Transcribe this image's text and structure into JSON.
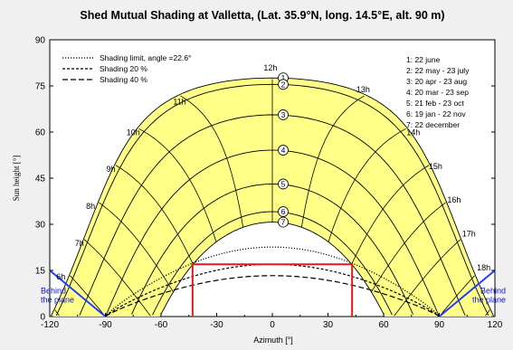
{
  "chart_data": {
    "type": "line",
    "title": "Shed Mutual Shading at  Valletta, (Lat. 35.9°N, long. 14.5°E, alt. 90 m)",
    "xlabel": "Azimuth [°]",
    "ylabel": "Sun height [°]",
    "xlim": [
      -120,
      120
    ],
    "ylim": [
      0,
      90
    ],
    "xticks": [
      -120,
      -90,
      -60,
      -30,
      0,
      30,
      60,
      90,
      120
    ],
    "yticks": [
      0,
      15,
      30,
      45,
      60,
      75,
      90
    ],
    "grid": false,
    "colors": {
      "sun_area": "#ffff88",
      "shading_box": "#e81818",
      "behind_plane": "#1f3fff"
    },
    "date_curves": [
      {
        "id": "1",
        "label": "1: 22 june",
        "max_elev": 77.6,
        "sunrise_az": -120
      },
      {
        "id": "2",
        "label": "2: 22 may - 23 july",
        "max_elev": 75.5,
        "sunrise_az": -117
      },
      {
        "id": "3",
        "label": "3: 20 apr - 23 aug",
        "max_elev": 65.6,
        "sunrise_az": -109
      },
      {
        "id": "4",
        "label": "4: 20 mar - 23 sep",
        "max_elev": 54.1,
        "sunrise_az": -90
      },
      {
        "id": "5",
        "label": "5: 21 feb - 23 oct",
        "max_elev": 43.1,
        "sunrise_az": -72
      },
      {
        "id": "6",
        "label": "6: 19 jan - 22 nov",
        "max_elev": 34.1,
        "sunrise_az": -64
      },
      {
        "id": "7",
        "label": "7: 22 december",
        "max_elev": 30.7,
        "sunrise_az": -62
      }
    ],
    "hour_labels": [
      {
        "label": "6h",
        "az": -114,
        "el": 12
      },
      {
        "label": "7h",
        "az": -104,
        "el": 23
      },
      {
        "label": "8h",
        "az": -98,
        "el": 35
      },
      {
        "label": "9h",
        "az": -87,
        "el": 47
      },
      {
        "label": "10h",
        "az": -75,
        "el": 59
      },
      {
        "label": "11h",
        "az": -50,
        "el": 69
      },
      {
        "label": "12h",
        "az": -1,
        "el": 80
      },
      {
        "label": "13h",
        "az": 49,
        "el": 73
      },
      {
        "label": "14h",
        "az": 76,
        "el": 59
      },
      {
        "label": "15h",
        "az": 88,
        "el": 48
      },
      {
        "label": "16h",
        "az": 98,
        "el": 37
      },
      {
        "label": "17h",
        "az": 106,
        "el": 26
      },
      {
        "label": "18h",
        "az": 114,
        "el": 15
      }
    ],
    "shading_curves": [
      {
        "label": "Shading limit, angle =22.6°",
        "style": "dotted",
        "peak": 22.6,
        "x0": 90
      },
      {
        "label": "Shading 20 %",
        "style": "dashed-short",
        "peak": 17.0,
        "x0": 90
      },
      {
        "label": "Shading 40 %",
        "style": "dashed-long",
        "peak": 13.3,
        "x0": 90
      }
    ],
    "shading_box": {
      "x_min": -43,
      "x_max": 43,
      "y_max": 17
    },
    "behind_plane": {
      "label_line1": "Behind",
      "label_line2": "the plane"
    }
  }
}
